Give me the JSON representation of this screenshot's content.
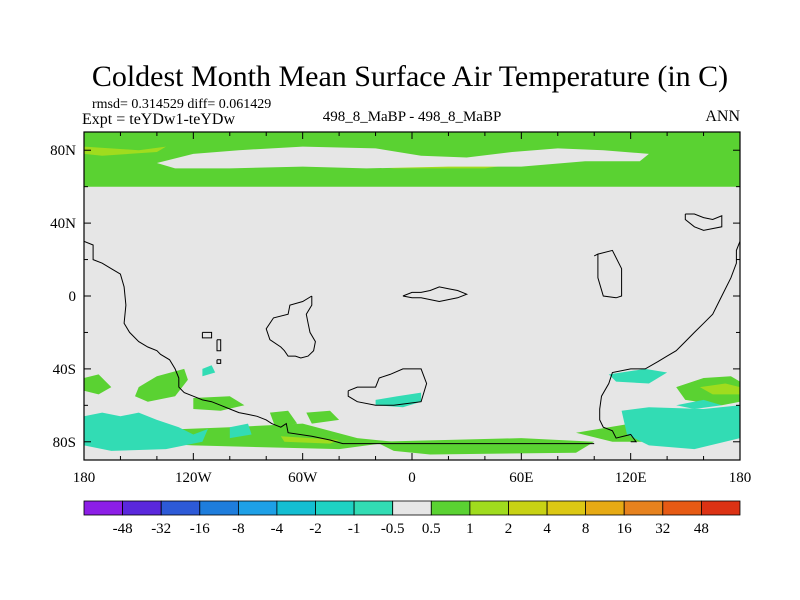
{
  "chart_data": {
    "type": "heatmap",
    "title": "Coldest Month Mean Surface Air Temperature (in C)",
    "stats_line": "rmsd= 0.314529  diff= 0.061429",
    "experiment": "Expt = teYDw1-teYDw",
    "center_label": "498_8_MaBP - 498_8_MaBP",
    "season": "ANN",
    "xlabel": "",
    "ylabel": "",
    "xlim": [
      -180,
      180
    ],
    "ylim": [
      -90,
      90
    ],
    "x_ticks": [
      {
        "value": -180,
        "label": "180"
      },
      {
        "value": -120,
        "label": "120W"
      },
      {
        "value": -60,
        "label": "60W"
      },
      {
        "value": 0,
        "label": "0"
      },
      {
        "value": 60,
        "label": "60E"
      },
      {
        "value": 120,
        "label": "120E"
      },
      {
        "value": 180,
        "label": "180"
      }
    ],
    "y_ticks": [
      {
        "value": 80,
        "label": "80N"
      },
      {
        "value": 40,
        "label": "40N"
      },
      {
        "value": 0,
        "label": "0"
      },
      {
        "value": -40,
        "label": "40S"
      },
      {
        "value": -80,
        "label": "80S"
      }
    ],
    "colorbar": {
      "colors": [
        "#8c1ee6",
        "#5a28dc",
        "#2d5ad7",
        "#1e7ddc",
        "#1ea0e6",
        "#14bed2",
        "#1ed2c3",
        "#32dcb4",
        "#e6e6e6",
        "#5ad232",
        "#a0dc1e",
        "#c8d214",
        "#dcc814",
        "#e6aa14",
        "#e6821e",
        "#e65a14",
        "#dc3214"
      ],
      "labels": [
        "-48",
        "-32",
        "-16",
        "-8",
        "-4",
        "-2",
        "-1",
        "-0.5",
        "0.5",
        "1",
        "2",
        "4",
        "8",
        "16",
        "32",
        "48"
      ]
    },
    "regions": [
      {
        "value": "1 to 2",
        "color": "#5ad232",
        "polygons": [
          [
            [
              -180,
              90
            ],
            [
              180,
              90
            ],
            [
              180,
              60
            ],
            [
              -180,
              60
            ]
          ],
          [
            [
              -180,
              -45
            ],
            [
              -172,
              -43
            ],
            [
              -165,
              -50
            ],
            [
              -172,
              -54
            ],
            [
              -180,
              -52
            ]
          ],
          [
            [
              -150,
              -50
            ],
            [
              -140,
              -44
            ],
            [
              -125,
              -40
            ],
            [
              -123,
              -46
            ],
            [
              -130,
              -55
            ],
            [
              -145,
              -58
            ],
            [
              -152,
              -55
            ]
          ],
          [
            [
              -120,
              -56
            ],
            [
              -100,
              -55
            ],
            [
              -92,
              -60
            ],
            [
              -105,
              -63
            ],
            [
              -120,
              -62
            ]
          ],
          [
            [
              -78,
              -64
            ],
            [
              -68,
              -63
            ],
            [
              -63,
              -70
            ],
            [
              -75,
              -72
            ]
          ],
          [
            [
              -58,
              -64
            ],
            [
              -45,
              -63
            ],
            [
              -40,
              -68
            ],
            [
              -55,
              -70
            ]
          ],
          [
            [
              -150,
              -74
            ],
            [
              -100,
              -72
            ],
            [
              -60,
              -70
            ],
            [
              -30,
              -78
            ],
            [
              -10,
              -80
            ],
            [
              -40,
              -84
            ],
            [
              -120,
              -82
            ],
            [
              -160,
              -80
            ]
          ],
          [
            [
              -20,
              -80
            ],
            [
              60,
              -78
            ],
            [
              100,
              -80
            ],
            [
              90,
              -86
            ],
            [
              10,
              -87
            ],
            [
              -10,
              -85
            ]
          ],
          [
            [
              90,
              -75
            ],
            [
              120,
              -70
            ],
            [
              150,
              -72
            ],
            [
              165,
              -78
            ],
            [
              140,
              -80
            ],
            [
              110,
              -80
            ]
          ],
          [
            [
              145,
              -50
            ],
            [
              160,
              -45
            ],
            [
              175,
              -44
            ],
            [
              180,
              -47
            ],
            [
              180,
              -58
            ],
            [
              170,
              -60
            ],
            [
              150,
              -57
            ]
          ]
        ]
      },
      {
        "value": "2 to 4",
        "color": "#a0dc1e",
        "polygons": [
          [
            [
              -180,
              82
            ],
            [
              -150,
              80
            ],
            [
              -135,
              82
            ],
            [
              -140,
              79
            ],
            [
              -170,
              77
            ],
            [
              -180,
              78
            ]
          ],
          [
            [
              -40,
              75
            ],
            [
              20,
              74
            ],
            [
              60,
              73
            ],
            [
              40,
              70
            ],
            [
              -10,
              70
            ],
            [
              -35,
              72
            ]
          ],
          [
            [
              158,
              -50
            ],
            [
              172,
              -48
            ],
            [
              180,
              -50
            ],
            [
              180,
              -54
            ],
            [
              165,
              -54
            ]
          ],
          [
            [
              -72,
              -77
            ],
            [
              -40,
              -79
            ],
            [
              -45,
              -81
            ],
            [
              -70,
              -80
            ]
          ]
        ]
      },
      {
        "value": "-1 to -0.5",
        "color": "#32dcb4",
        "polygons": [
          [
            [
              -180,
              -66
            ],
            [
              -170,
              -64
            ],
            [
              -160,
              -66
            ],
            [
              -150,
              -64
            ],
            [
              -140,
              -68
            ],
            [
              -128,
              -72
            ],
            [
              -120,
              -76
            ],
            [
              -112,
              -73
            ],
            [
              -115,
              -80
            ],
            [
              -135,
              -84
            ],
            [
              -165,
              -85
            ],
            [
              -180,
              -82
            ]
          ],
          [
            [
              -70,
              81
            ],
            [
              -45,
              81
            ],
            [
              -40,
              80
            ],
            [
              -55,
              77
            ],
            [
              -72,
              78
            ]
          ],
          [
            [
              -100,
              -72
            ],
            [
              -90,
              -70
            ],
            [
              -88,
              -76
            ],
            [
              -100,
              -78
            ]
          ],
          [
            [
              -115,
              -40
            ],
            [
              -110,
              -38
            ],
            [
              -108,
              -42
            ],
            [
              -115,
              -44
            ]
          ],
          [
            [
              -20,
              -57
            ],
            [
              -8,
              -55
            ],
            [
              5,
              -53
            ],
            [
              5,
              -58
            ],
            [
              -5,
              -61
            ],
            [
              -20,
              -60
            ]
          ],
          [
            [
              108,
              -43
            ],
            [
              128,
              -40
            ],
            [
              140,
              -42
            ],
            [
              130,
              -48
            ],
            [
              112,
              -47
            ]
          ],
          [
            [
              115,
              -63
            ],
            [
              130,
              -61
            ],
            [
              160,
              -62
            ],
            [
              180,
              -60
            ],
            [
              180,
              -78
            ],
            [
              155,
              -84
            ],
            [
              130,
              -82
            ],
            [
              118,
              -76
            ]
          ],
          [
            [
              145,
              -60
            ],
            [
              160,
              -57
            ],
            [
              170,
              -60
            ],
            [
              155,
              -62
            ]
          ]
        ]
      },
      {
        "value": "-0.5 to 0.5",
        "color": "#e6e6e6",
        "polygons": [
          [
            [
              -140,
              73
            ],
            [
              -120,
              78
            ],
            [
              -95,
              80
            ],
            [
              -60,
              82
            ],
            [
              -20,
              81
            ],
            [
              5,
              77
            ],
            [
              30,
              76
            ],
            [
              55,
              79
            ],
            [
              80,
              81
            ],
            [
              105,
              80
            ],
            [
              130,
              78
            ],
            [
              125,
              74
            ],
            [
              95,
              74
            ],
            [
              60,
              71
            ],
            [
              20,
              71
            ],
            [
              -25,
              70
            ],
            [
              -60,
              71
            ],
            [
              -100,
              70
            ],
            [
              -130,
              70
            ]
          ]
        ]
      }
    ],
    "coastlines": [
      [
        [
          -180,
          30
        ],
        [
          -175,
          28
        ],
        [
          -175,
          20
        ],
        [
          -170,
          18
        ],
        [
          -165,
          15
        ],
        [
          -160,
          12
        ],
        [
          -158,
          5
        ],
        [
          -157,
          -5
        ],
        [
          -158,
          -15
        ],
        [
          -155,
          -20
        ],
        [
          -150,
          -25
        ],
        [
          -145,
          -28
        ],
        [
          -140,
          -30
        ],
        [
          -138,
          -32
        ],
        [
          -133,
          -35
        ],
        [
          -130,
          -40
        ],
        [
          -128,
          -45
        ],
        [
          -128,
          -50
        ],
        [
          -125,
          -53
        ],
        [
          -120,
          -55
        ],
        [
          -115,
          -57
        ],
        [
          -110,
          -58
        ],
        [
          -105,
          -60
        ],
        [
          -100,
          -62
        ],
        [
          -95,
          -64
        ],
        [
          -90,
          -65
        ],
        [
          -85,
          -66
        ],
        [
          -80,
          -68
        ],
        [
          -77,
          -70
        ],
        [
          -72,
          -72
        ],
        [
          -69,
          -70
        ],
        [
          -68,
          -75
        ],
        [
          -55,
          -77
        ],
        [
          -45,
          -79
        ],
        [
          -38,
          -81
        ],
        [
          0,
          -81
        ],
        [
          60,
          -81
        ],
        [
          100,
          -81
        ]
      ],
      [
        [
          180,
          30
        ],
        [
          178,
          25
        ],
        [
          178,
          18
        ],
        [
          175,
          10
        ],
        [
          170,
          0
        ],
        [
          165,
          -10
        ],
        [
          160,
          -15
        ],
        [
          155,
          -20
        ],
        [
          150,
          -25
        ],
        [
          145,
          -30
        ],
        [
          140,
          -33
        ],
        [
          135,
          -36
        ],
        [
          128,
          -40
        ],
        [
          120,
          -40
        ],
        [
          110,
          -42
        ],
        [
          108,
          -48
        ],
        [
          104,
          -55
        ],
        [
          103,
          -62
        ],
        [
          103,
          -68
        ],
        [
          105,
          -72
        ],
        [
          110,
          -74
        ],
        [
          112,
          -78
        ],
        [
          120,
          -76
        ],
        [
          123,
          -80
        ],
        [
          120,
          -80
        ]
      ],
      [
        [
          -55,
          0
        ],
        [
          -60,
          -3
        ],
        [
          -67,
          -5
        ],
        [
          -68,
          -10
        ],
        [
          -76,
          -12
        ],
        [
          -80,
          -18
        ],
        [
          -78,
          -24
        ],
        [
          -72,
          -28
        ],
        [
          -70,
          -30
        ],
        [
          -68,
          -33
        ],
        [
          -64,
          -33
        ],
        [
          -61,
          -34
        ],
        [
          -57,
          -33
        ],
        [
          -54,
          -30
        ],
        [
          -53,
          -25
        ],
        [
          -56,
          -20
        ],
        [
          -57,
          -15
        ],
        [
          -58,
          -10
        ],
        [
          -55,
          -5
        ],
        [
          -55,
          0
        ]
      ],
      [
        [
          -35,
          -52
        ],
        [
          -30,
          -50
        ],
        [
          -20,
          -50
        ],
        [
          -18,
          -45
        ],
        [
          -12,
          -43
        ],
        [
          -5,
          -40
        ],
        [
          5,
          -40
        ],
        [
          8,
          -48
        ],
        [
          5,
          -58
        ],
        [
          -10,
          -60
        ],
        [
          -20,
          -60
        ],
        [
          -30,
          -58
        ],
        [
          -35,
          -55
        ],
        [
          -35,
          -52
        ]
      ],
      [
        [
          -5,
          0
        ],
        [
          0,
          2
        ],
        [
          5,
          2
        ],
        [
          10,
          3
        ],
        [
          15,
          5
        ],
        [
          20,
          4
        ],
        [
          25,
          3
        ],
        [
          30,
          1
        ],
        [
          25,
          -1
        ],
        [
          20,
          -2
        ],
        [
          15,
          -3
        ],
        [
          10,
          -2
        ],
        [
          5,
          -1
        ],
        [
          0,
          -1
        ],
        [
          -5,
          0
        ]
      ],
      [
        [
          100,
          22
        ],
        [
          102,
          23
        ],
        [
          102,
          10
        ],
        [
          105,
          0
        ],
        [
          112,
          -1
        ],
        [
          115,
          0
        ],
        [
          115,
          15
        ],
        [
          110,
          25
        ],
        [
          102,
          23
        ]
      ],
      [
        [
          150,
          45
        ],
        [
          155,
          45
        ],
        [
          160,
          43
        ],
        [
          165,
          42
        ],
        [
          170,
          44
        ],
        [
          170,
          38
        ],
        [
          160,
          36
        ],
        [
          155,
          38
        ],
        [
          150,
          42
        ],
        [
          150,
          45
        ]
      ],
      [
        [
          -115,
          -20
        ],
        [
          -110,
          -20
        ],
        [
          -110,
          -23
        ],
        [
          -115,
          -23
        ],
        [
          -115,
          -20
        ]
      ],
      [
        [
          -107,
          -24
        ],
        [
          -105,
          -24
        ],
        [
          -105,
          -30
        ],
        [
          -107,
          -30
        ],
        [
          -107,
          -24
        ]
      ],
      [
        [
          -107,
          -35
        ],
        [
          -105,
          -35
        ],
        [
          -105,
          -37
        ],
        [
          -107,
          -37
        ],
        [
          -107,
          -35
        ]
      ]
    ]
  }
}
